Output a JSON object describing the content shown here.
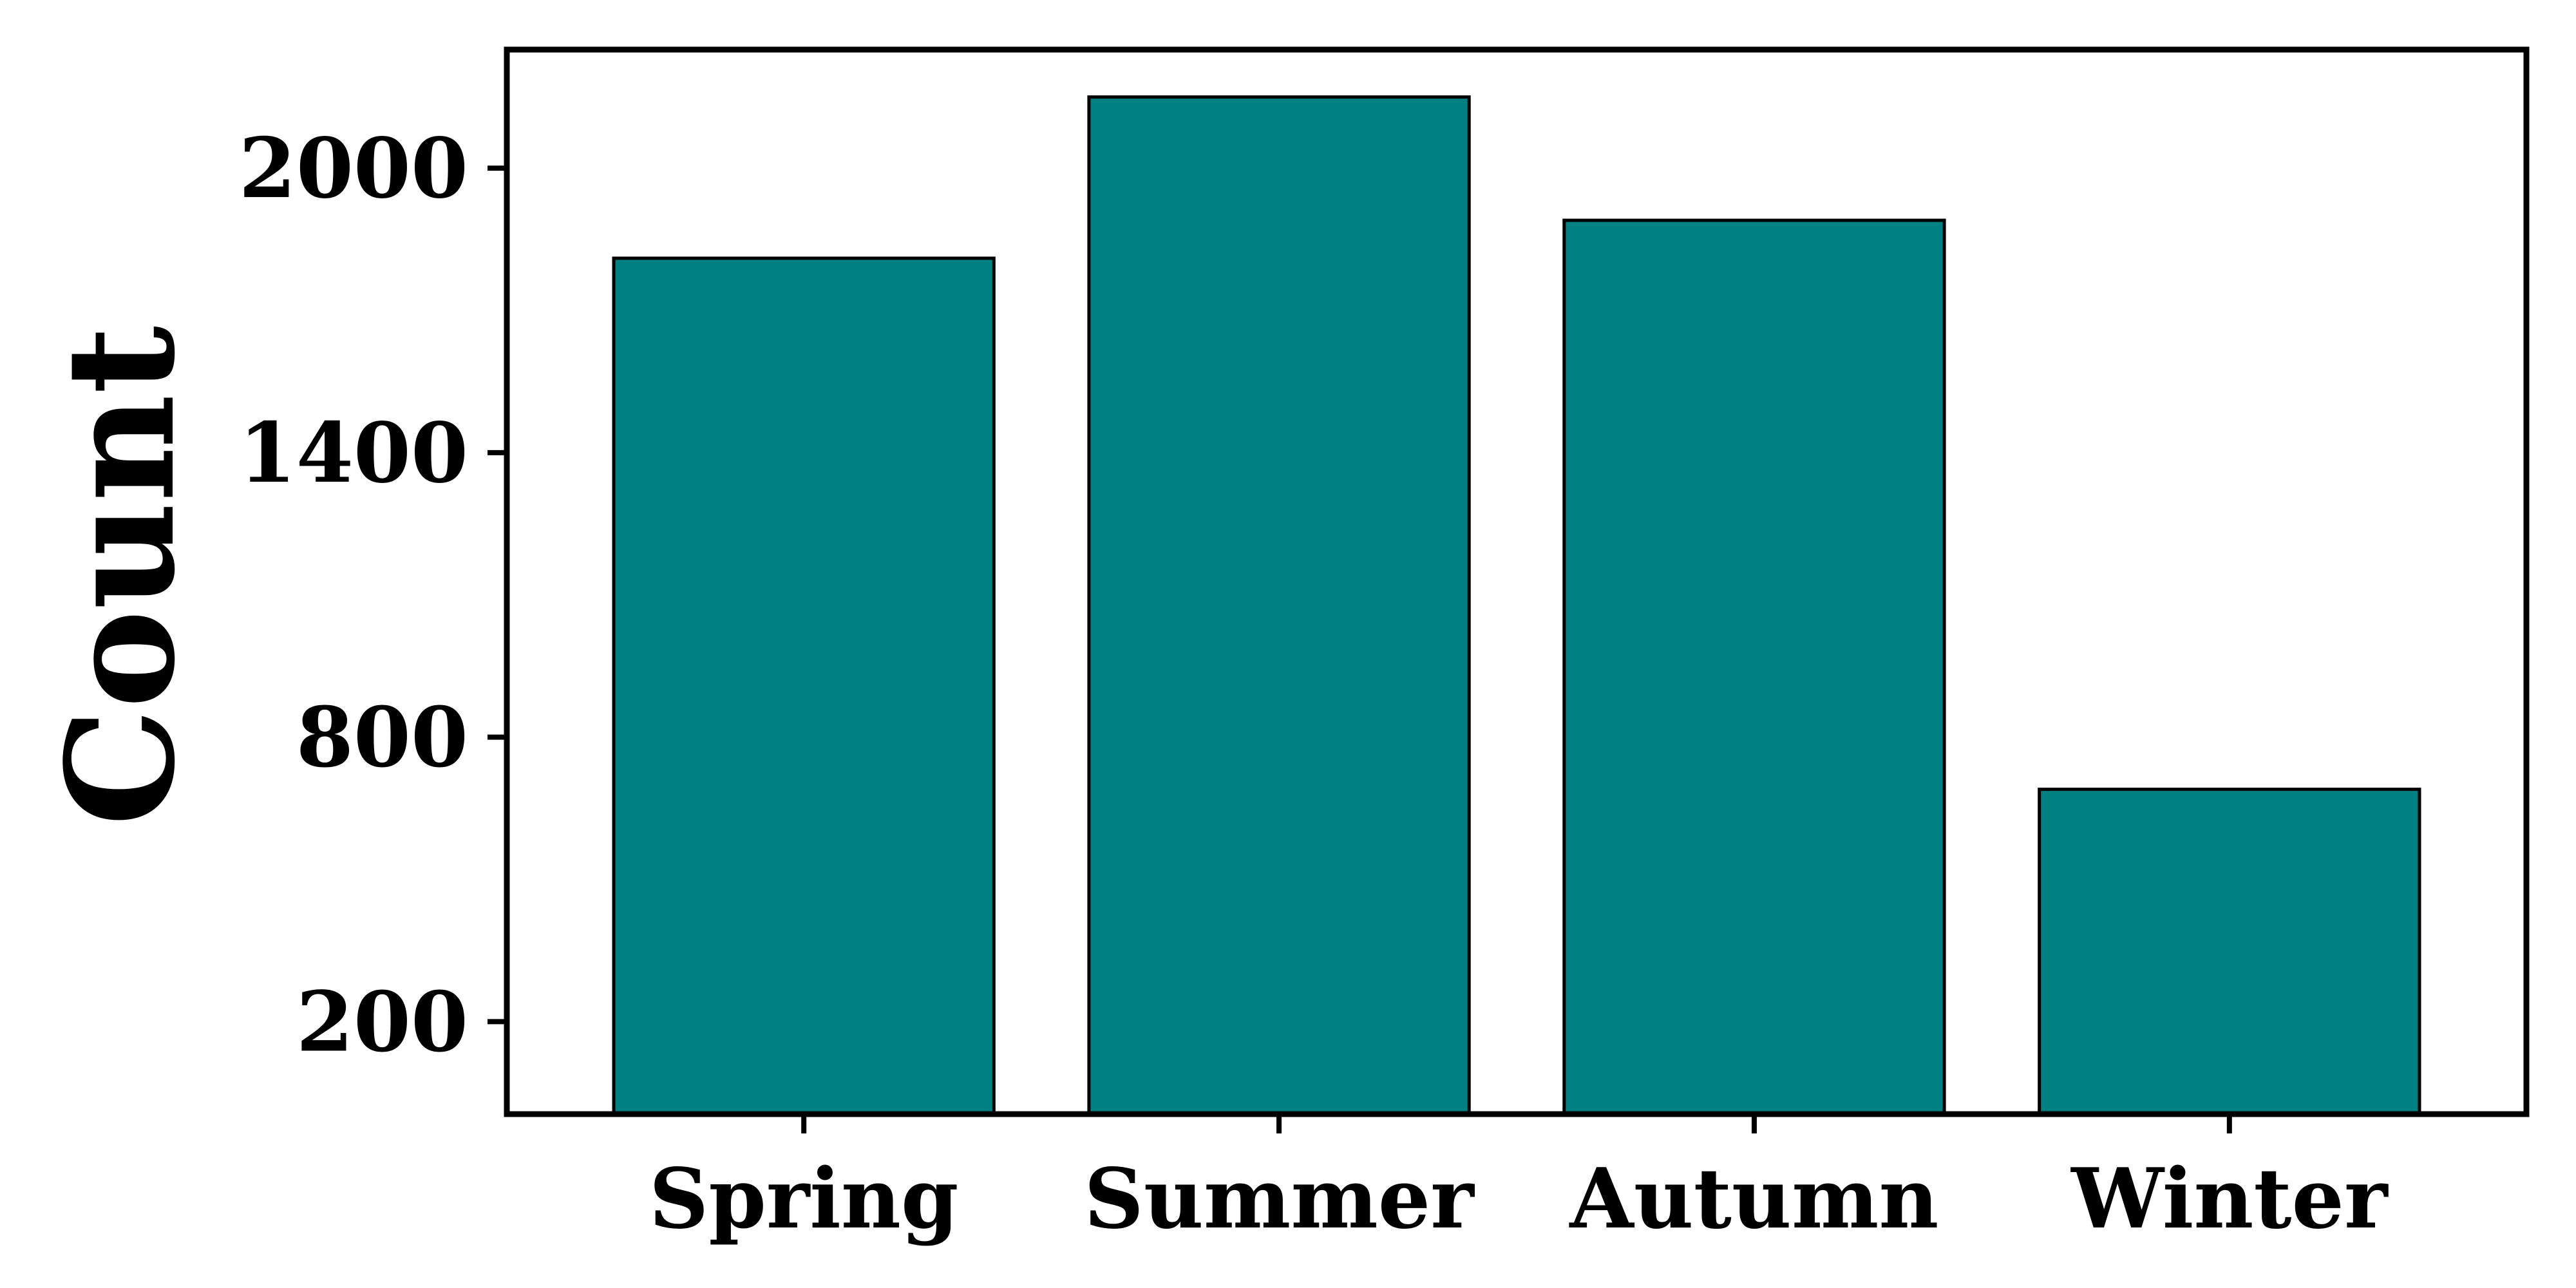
{
  "chart_data": {
    "type": "bar",
    "categories": [
      "Spring",
      "Summer",
      "Autumn",
      "Winter"
    ],
    "values": [
      1810,
      2150,
      1890,
      690
    ],
    "title": "",
    "xlabel": "",
    "ylabel": "Count",
    "yticks": [
      200,
      800,
      1400,
      2000
    ],
    "ytick_labels": [
      "200",
      "800",
      "1400",
      "2000"
    ],
    "ylim": [
      5,
      2250
    ],
    "grid": false,
    "legend": "none",
    "colors": {
      "bar_fill": "#008080",
      "bar_edge": "#000000",
      "axes": "#000000"
    }
  }
}
